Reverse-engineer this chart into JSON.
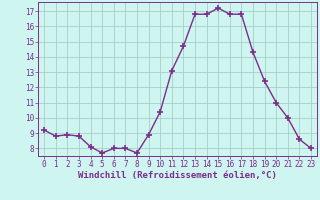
{
  "x": [
    0,
    1,
    2,
    3,
    4,
    5,
    6,
    7,
    8,
    9,
    10,
    11,
    12,
    13,
    14,
    15,
    16,
    17,
    18,
    19,
    20,
    21,
    22,
    23
  ],
  "y": [
    9.2,
    8.8,
    8.9,
    8.8,
    8.1,
    7.7,
    8.0,
    8.0,
    7.7,
    8.9,
    10.4,
    13.1,
    14.7,
    16.8,
    16.8,
    17.2,
    16.8,
    16.8,
    14.3,
    12.4,
    11.0,
    10.0,
    8.6,
    8.0
  ],
  "line_color": "#7b2d8b",
  "marker": "+",
  "markersize": 5,
  "markeredgewidth": 1.2,
  "linewidth": 1.0,
  "bg_color": "#cef5f0",
  "grid_color": "#a0c8c0",
  "xlabel": "Windchill (Refroidissement éolien,°C)",
  "xlabel_fontsize": 6.5,
  "ylabel_ticks": [
    8,
    9,
    10,
    11,
    12,
    13,
    14,
    15,
    16,
    17
  ],
  "xlim": [
    -0.5,
    23.5
  ],
  "ylim": [
    7.5,
    17.6
  ],
  "xtick_labels": [
    "0",
    "1",
    "2",
    "3",
    "4",
    "5",
    "6",
    "7",
    "8",
    "9",
    "10",
    "11",
    "12",
    "13",
    "14",
    "15",
    "16",
    "17",
    "18",
    "19",
    "20",
    "21",
    "22",
    "23"
  ],
  "tick_fontsize": 5.5,
  "spine_color": "#7b2d8b"
}
